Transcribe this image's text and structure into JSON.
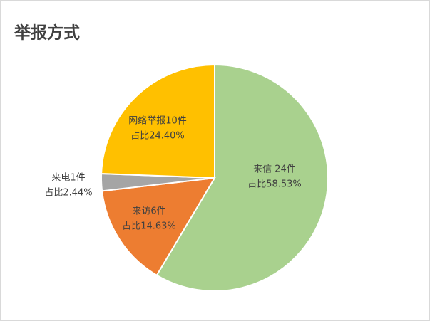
{
  "chart_data": {
    "type": "pie",
    "title": "举报方式",
    "categories": [
      "来信 24件",
      "来访6件",
      "来电1件",
      "网络举报10件"
    ],
    "values": [
      58.53,
      14.63,
      2.44,
      24.4
    ],
    "value_labels": [
      "占比58.53%",
      "占比14.63%",
      "占比2.44%",
      "占比24.40%"
    ],
    "colors": [
      "#a9d18e",
      "#ed7d31",
      "#a5a5a5",
      "#ffc000"
    ]
  }
}
